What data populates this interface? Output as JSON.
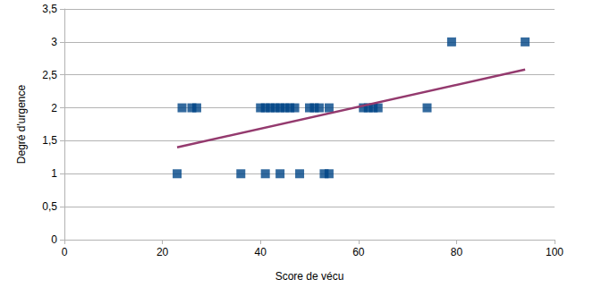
{
  "chart_data": {
    "type": "scatter",
    "x_label": "Score de vécu",
    "y_label": "Degré d'urgence",
    "xlim": [
      0,
      100
    ],
    "xticks": [
      0,
      20,
      40,
      60,
      80,
      100
    ],
    "ylim": [
      0,
      3.5
    ],
    "yticks": [
      0,
      {
        "value": 0.5,
        "label": "0,5"
      },
      1,
      {
        "value": 1.5,
        "label": "1,5"
      },
      2,
      {
        "value": 2.5,
        "label": "2,5"
      },
      3,
      {
        "value": 3.5,
        "label": "3,5"
      }
    ],
    "grid": "y",
    "series": [
      {
        "type": "scatter",
        "marker": "square",
        "color": "#004586",
        "x": [
          23,
          36,
          41,
          44,
          48,
          53,
          54,
          24,
          26,
          27,
          40,
          41,
          42,
          43,
          44,
          45,
          46,
          47,
          50,
          51,
          52,
          54,
          61,
          62,
          63,
          64,
          74,
          79,
          94
        ],
        "values": [
          1,
          1,
          1,
          1,
          1,
          1,
          1,
          2,
          2,
          2,
          2,
          2,
          2,
          2,
          2,
          2,
          2,
          2,
          2,
          2,
          2,
          2,
          2,
          2,
          2,
          2,
          2,
          3,
          3
        ]
      },
      {
        "type": "line",
        "line_style": "solid",
        "color": "#943a6e",
        "x": [
          23,
          94
        ],
        "values": [
          1.4,
          2.58
        ]
      }
    ]
  }
}
